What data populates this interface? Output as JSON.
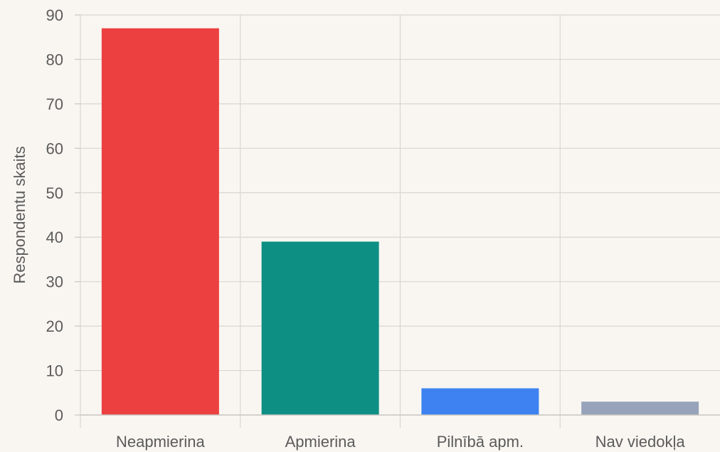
{
  "chart_data": {
    "type": "bar",
    "categories": [
      "Neapmierina",
      "Apmierina",
      "Pilnībā apm.",
      "Nav viedokļa"
    ],
    "values": [
      87,
      39,
      6,
      3
    ],
    "colors": [
      "#ec4040",
      "#0d8f84",
      "#3d82f0",
      "#97a3bb"
    ],
    "xlabel": "",
    "ylabel": "Respondentu skaits",
    "ylim": [
      0,
      90
    ],
    "yticks": [
      0,
      10,
      20,
      30,
      40,
      50,
      60,
      70,
      80,
      90
    ],
    "grid": true,
    "legend": "none"
  }
}
